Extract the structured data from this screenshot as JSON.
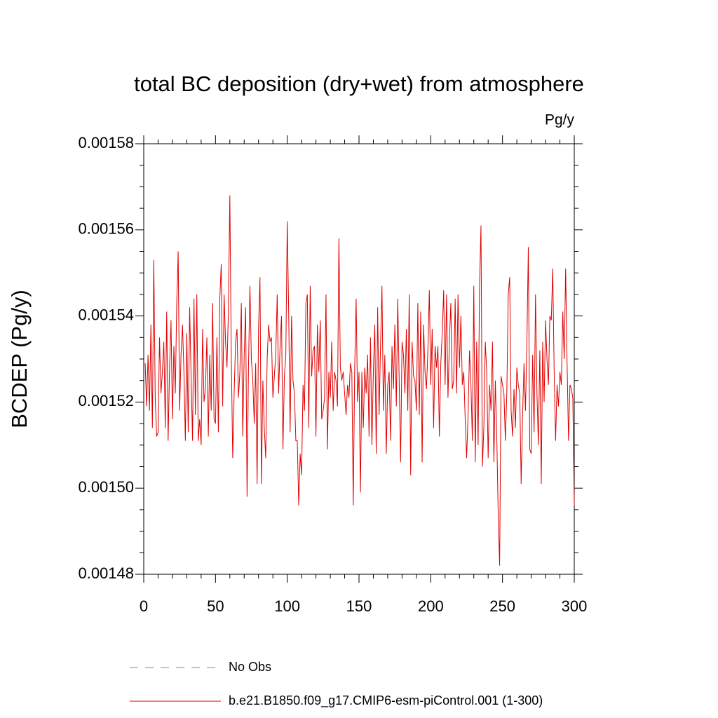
{
  "chart_data": {
    "type": "line",
    "title": "total BC deposition (dry+wet) from atmosphere",
    "units": "Pg/y",
    "ylabel": "BCDEP  (Pg/y)",
    "xlim": [
      0,
      300
    ],
    "xticks": [
      0,
      50,
      100,
      150,
      200,
      250,
      300
    ],
    "ylim": [
      0.00148,
      0.00158
    ],
    "yticks": [
      0.00148,
      {
        "value": 0.0015,
        "label": "0.00150"
      },
      0.00152,
      0.00154,
      0.00156,
      0.00158
    ],
    "x": [
      1,
      2,
      3,
      4,
      5,
      6,
      7,
      8,
      9,
      10,
      11,
      12,
      13,
      14,
      15,
      16,
      17,
      18,
      19,
      20,
      21,
      22,
      23,
      24,
      25,
      26,
      27,
      28,
      29,
      30,
      31,
      32,
      33,
      34,
      35,
      36,
      37,
      38,
      39,
      40,
      41,
      42,
      43,
      44,
      45,
      46,
      47,
      48,
      49,
      50,
      51,
      52,
      53,
      54,
      55,
      56,
      57,
      58,
      59,
      60,
      61,
      62,
      63,
      64,
      65,
      66,
      67,
      68,
      69,
      70,
      71,
      72,
      73,
      74,
      75,
      76,
      77,
      78,
      79,
      80,
      81,
      82,
      83,
      84,
      85,
      86,
      87,
      88,
      89,
      90,
      91,
      92,
      93,
      94,
      95,
      96,
      97,
      98,
      99,
      100,
      101,
      102,
      103,
      104,
      105,
      106,
      107,
      108,
      109,
      110,
      111,
      112,
      113,
      114,
      115,
      116,
      117,
      118,
      119,
      120,
      121,
      122,
      123,
      124,
      125,
      126,
      127,
      128,
      129,
      130,
      131,
      132,
      133,
      134,
      135,
      136,
      137,
      138,
      139,
      140,
      141,
      142,
      143,
      144,
      145,
      146,
      147,
      148,
      149,
      150,
      151,
      152,
      153,
      154,
      155,
      156,
      157,
      158,
      159,
      160,
      161,
      162,
      163,
      164,
      165,
      166,
      167,
      168,
      169,
      170,
      171,
      172,
      173,
      174,
      175,
      176,
      177,
      178,
      179,
      180,
      181,
      182,
      183,
      184,
      185,
      186,
      187,
      188,
      189,
      190,
      191,
      192,
      193,
      194,
      195,
      196,
      197,
      198,
      199,
      200,
      201,
      202,
      203,
      204,
      205,
      206,
      207,
      208,
      209,
      210,
      211,
      212,
      213,
      214,
      215,
      216,
      217,
      218,
      219,
      220,
      221,
      222,
      223,
      224,
      225,
      226,
      227,
      228,
      229,
      230,
      231,
      232,
      233,
      234,
      235,
      236,
      237,
      238,
      239,
      240,
      241,
      242,
      243,
      244,
      245,
      246,
      247,
      248,
      249,
      250,
      251,
      252,
      253,
      254,
      255,
      256,
      257,
      258,
      259,
      260,
      261,
      262,
      263,
      264,
      265,
      266,
      267,
      268,
      269,
      270,
      271,
      272,
      273,
      274,
      275,
      276,
      277,
      278,
      279,
      280,
      281,
      282,
      283,
      284,
      285,
      286,
      287,
      288,
      289,
      290,
      291,
      292,
      293,
      294,
      295,
      296,
      297,
      298,
      299,
      300
    ],
    "series": [
      {
        "name": "No Obs",
        "color": "#8080c8",
        "dashed": true,
        "values": null
      },
      {
        "name": "b.e21.B1850.f09_g17.CMIP6-esm-piControl.001 (1-300)",
        "color": "#e00000",
        "dashed": false,
        "values": [
          0.001529,
          0.001519,
          0.001531,
          0.001518,
          0.001538,
          0.001514,
          0.001553,
          0.001521,
          0.001512,
          0.001513,
          0.001535,
          0.001522,
          0.001527,
          0.001534,
          0.001514,
          0.001541,
          0.001511,
          0.001528,
          0.001539,
          0.001516,
          0.001533,
          0.001522,
          0.001543,
          0.001555,
          0.001518,
          0.001531,
          0.001538,
          0.001527,
          0.001511,
          0.001536,
          0.001513,
          0.001542,
          0.001526,
          0.001511,
          0.001544,
          0.001517,
          0.001545,
          0.001511,
          0.001516,
          0.00151,
          0.001537,
          0.00152,
          0.001523,
          0.001535,
          0.001512,
          0.001531,
          0.001518,
          0.001543,
          0.001516,
          0.001515,
          0.001535,
          0.001513,
          0.001544,
          0.001552,
          0.001519,
          0.001545,
          0.001534,
          0.001528,
          0.001541,
          0.001568,
          0.001531,
          0.001507,
          0.001522,
          0.001534,
          0.001537,
          0.001521,
          0.001527,
          0.001543,
          0.001512,
          0.001531,
          0.001542,
          0.001498,
          0.001528,
          0.001547,
          0.00153,
          0.001525,
          0.001515,
          0.001529,
          0.001501,
          0.001537,
          0.001549,
          0.001501,
          0.001525,
          0.001514,
          0.001507,
          0.00153,
          0.001538,
          0.001534,
          0.001535,
          0.001521,
          0.001526,
          0.001531,
          0.001545,
          0.001522,
          0.001533,
          0.00154,
          0.001509,
          0.001526,
          0.001531,
          0.001562,
          0.001541,
          0.001513,
          0.00154,
          0.001525,
          0.001522,
          0.001511,
          0.001511,
          0.001496,
          0.001508,
          0.001503,
          0.001524,
          0.001518,
          0.001543,
          0.001545,
          0.001514,
          0.001547,
          0.001526,
          0.001532,
          0.001533,
          0.001512,
          0.001538,
          0.001527,
          0.001539,
          0.001516,
          0.001518,
          0.001521,
          0.001545,
          0.001509,
          0.001527,
          0.001521,
          0.001534,
          0.001518,
          0.001527,
          0.001525,
          0.001519,
          0.001558,
          0.001528,
          0.001525,
          0.001527,
          0.001522,
          0.001517,
          0.001524,
          0.001521,
          0.001529,
          0.001527,
          0.001496,
          0.001528,
          0.001544,
          0.00152,
          0.001527,
          0.001499,
          0.001527,
          0.001514,
          0.001528,
          0.001522,
          0.001531,
          0.001512,
          0.001535,
          0.00151,
          0.001527,
          0.001538,
          0.001508,
          0.001542,
          0.001517,
          0.001533,
          0.001547,
          0.001518,
          0.001531,
          0.001508,
          0.001524,
          0.001527,
          0.001511,
          0.001533,
          0.001523,
          0.001538,
          0.001519,
          0.001544,
          0.001525,
          0.001506,
          0.001534,
          0.001531,
          0.001522,
          0.001537,
          0.001518,
          0.001545,
          0.001503,
          0.001534,
          0.001526,
          0.001525,
          0.001518,
          0.001543,
          0.001517,
          0.001541,
          0.001506,
          0.001538,
          0.001527,
          0.001523,
          0.001532,
          0.001546,
          0.001524,
          0.001537,
          0.001514,
          0.001533,
          0.001528,
          0.001533,
          0.001512,
          0.001529,
          0.001536,
          0.001546,
          0.001524,
          0.001545,
          0.001521,
          0.001534,
          0.001543,
          0.001523,
          0.001525,
          0.001544,
          0.001522,
          0.001545,
          0.001528,
          0.00154,
          0.001524,
          0.001527,
          0.001516,
          0.001507,
          0.001517,
          0.001532,
          0.001524,
          0.001511,
          0.001547,
          0.001506,
          0.001534,
          0.00151,
          0.001547,
          0.001561,
          0.001505,
          0.001514,
          0.001534,
          0.001527,
          0.001507,
          0.001524,
          0.001518,
          0.001534,
          0.001506,
          0.001525,
          0.001512,
          0.001494,
          0.001482,
          0.001526,
          0.001524,
          0.001522,
          0.001511,
          0.001522,
          0.001545,
          0.001549,
          0.001518,
          0.001512,
          0.001523,
          0.001514,
          0.001528,
          0.001524,
          0.001522,
          0.001501,
          0.001517,
          0.001529,
          0.001518,
          0.001534,
          0.001556,
          0.001509,
          0.001508,
          0.001531,
          0.001513,
          0.001545,
          0.001522,
          0.00151,
          0.001532,
          0.001501,
          0.001534,
          0.00152,
          0.001539,
          0.00153,
          0.001524,
          0.00154,
          0.001539,
          0.001551,
          0.001527,
          0.001511,
          0.001524,
          0.001519,
          0.001527,
          0.001524,
          0.001541,
          0.00153,
          0.001551,
          0.001529,
          0.001511,
          0.001524,
          0.001523,
          0.001521,
          0.001496
        ]
      }
    ]
  }
}
